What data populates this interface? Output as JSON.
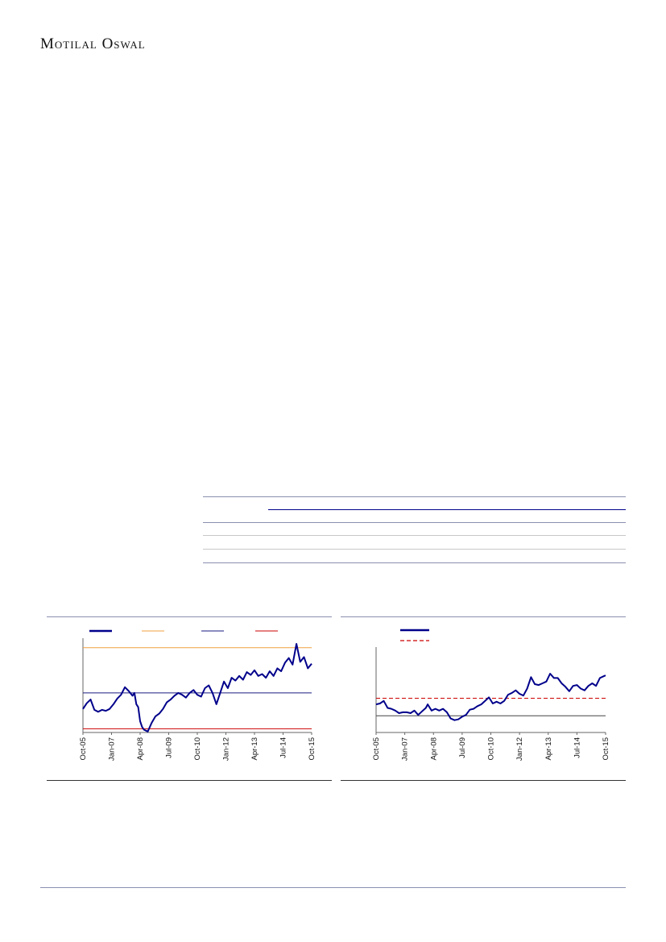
{
  "header": {
    "brand": "Motilal Oswal"
  },
  "colors": {
    "navy": "#00008b",
    "rule": "#8a8fb0",
    "orange": "#f0a040",
    "mid_blue": "#1a1a80",
    "red": "#cc0000",
    "light_rule": "#c8c8c8"
  },
  "chart_data": [
    {
      "type": "line",
      "x_ticks": [
        "Oct-05",
        "Jan-07",
        "Apr-08",
        "Jul-09",
        "Oct-10",
        "Jan-12",
        "Apr-13",
        "Jul-14",
        "Oct-15"
      ],
      "x_range": [
        "2005-10",
        "2015-10"
      ],
      "y_range": [
        0,
        100
      ],
      "legend_placement": "top",
      "grid": false,
      "reference_lines": [
        {
          "value": 90,
          "color": "#f0a040"
        },
        {
          "value": 42,
          "color": "#1a1a80"
        },
        {
          "value": 4,
          "color": "#cc0000"
        }
      ],
      "series": [
        {
          "color": "#00008b",
          "x": [
            "2005-10",
            "2005-12",
            "2006-02",
            "2006-04",
            "2006-06",
            "2006-08",
            "2006-10",
            "2006-12",
            "2007-02",
            "2007-04",
            "2007-06",
            "2007-08",
            "2007-10",
            "2007-12",
            "2008-01",
            "2008-02",
            "2008-03",
            "2008-04",
            "2008-05",
            "2008-06",
            "2008-08",
            "2008-10",
            "2008-12",
            "2009-02",
            "2009-04",
            "2009-06",
            "2009-08",
            "2009-10",
            "2009-12",
            "2010-02",
            "2010-04",
            "2010-06",
            "2010-08",
            "2010-10",
            "2010-12",
            "2011-02",
            "2011-04",
            "2011-06",
            "2011-08",
            "2011-10",
            "2011-12",
            "2012-02",
            "2012-04",
            "2012-06",
            "2012-08",
            "2012-10",
            "2012-12",
            "2013-02",
            "2013-04",
            "2013-06",
            "2013-08",
            "2013-10",
            "2013-12",
            "2014-02",
            "2014-04",
            "2014-06",
            "2014-08",
            "2014-10",
            "2014-12",
            "2015-02",
            "2015-04",
            "2015-06",
            "2015-08",
            "2015-10"
          ],
          "values": [
            25,
            31,
            35,
            24,
            22,
            24,
            23,
            25,
            30,
            36,
            40,
            48,
            44,
            39,
            42,
            30,
            27,
            12,
            6,
            3,
            1,
            10,
            17,
            20,
            25,
            32,
            35,
            39,
            42,
            40,
            37,
            42,
            45,
            40,
            38,
            47,
            50,
            42,
            30,
            42,
            54,
            47,
            58,
            55,
            60,
            56,
            64,
            61,
            66,
            60,
            62,
            58,
            65,
            60,
            68,
            65,
            74,
            79,
            72,
            94,
            75,
            80,
            68,
            73
          ]
        }
      ]
    },
    {
      "type": "line",
      "x_ticks": [
        "Oct-05",
        "Jan-07",
        "Apr-08",
        "Jul-09",
        "Oct-10",
        "Jan-12",
        "Apr-13",
        "Jul-14",
        "Oct-15"
      ],
      "x_range": [
        "2005-10",
        "2015-10"
      ],
      "y_range": [
        0,
        100
      ],
      "legend_placement": "top",
      "grid": false,
      "reference_lines": [
        {
          "value": 39,
          "color": "#cc0000",
          "dashed": true
        },
        {
          "value": 19,
          "color": "#444444"
        }
      ],
      "series": [
        {
          "color": "#00008b",
          "x": [
            "2005-10",
            "2005-12",
            "2006-02",
            "2006-04",
            "2006-06",
            "2006-08",
            "2006-10",
            "2006-12",
            "2007-02",
            "2007-04",
            "2007-06",
            "2007-08",
            "2007-10",
            "2007-12",
            "2008-01",
            "2008-03",
            "2008-05",
            "2008-07",
            "2008-09",
            "2008-11",
            "2009-01",
            "2009-03",
            "2009-05",
            "2009-07",
            "2009-09",
            "2009-11",
            "2010-01",
            "2010-03",
            "2010-05",
            "2010-07",
            "2010-09",
            "2010-11",
            "2011-01",
            "2011-03",
            "2011-05",
            "2011-07",
            "2011-09",
            "2011-11",
            "2012-01",
            "2012-03",
            "2012-05",
            "2012-07",
            "2012-09",
            "2012-11",
            "2013-01",
            "2013-03",
            "2013-05",
            "2013-07",
            "2013-09",
            "2013-11",
            "2014-01",
            "2014-03",
            "2014-05",
            "2014-07",
            "2014-09",
            "2014-11",
            "2015-01",
            "2015-03",
            "2015-05",
            "2015-07",
            "2015-09",
            "2015-10"
          ],
          "values": [
            32,
            33,
            36,
            28,
            27,
            25,
            22,
            23,
            23,
            22,
            25,
            20,
            24,
            28,
            32,
            25,
            27,
            25,
            27,
            23,
            16,
            14,
            15,
            18,
            20,
            26,
            27,
            30,
            32,
            36,
            40,
            33,
            35,
            33,
            36,
            43,
            45,
            48,
            44,
            42,
            50,
            63,
            55,
            54,
            56,
            58,
            67,
            62,
            62,
            56,
            52,
            47,
            53,
            54,
            50,
            48,
            53,
            56,
            53,
            62,
            64,
            65
          ]
        }
      ]
    }
  ]
}
